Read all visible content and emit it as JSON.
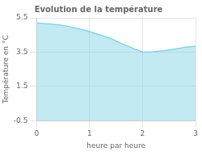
{
  "chart_data": {
    "type": "area",
    "title": "Evolution de la température",
    "xlabel": "heure par heure",
    "ylabel": "Température en °C",
    "x": [
      0,
      0.2,
      0.4,
      0.6,
      0.8,
      1.0,
      1.2,
      1.4,
      1.6,
      1.8,
      2.0,
      2.2,
      2.4,
      2.6,
      2.8,
      3.0
    ],
    "values": [
      5.2,
      5.15,
      5.1,
      5.0,
      4.85,
      4.7,
      4.5,
      4.3,
      4.0,
      3.75,
      3.5,
      3.52,
      3.58,
      3.68,
      3.78,
      3.85
    ],
    "color": "#88d4e8",
    "xlim": [
      0,
      3
    ],
    "ylim": [
      -0.5,
      5.5
    ],
    "xticks": [
      0,
      1,
      2,
      3
    ],
    "yticks": [
      -0.5,
      1.5,
      3.5,
      5.5
    ],
    "grid": true
  }
}
